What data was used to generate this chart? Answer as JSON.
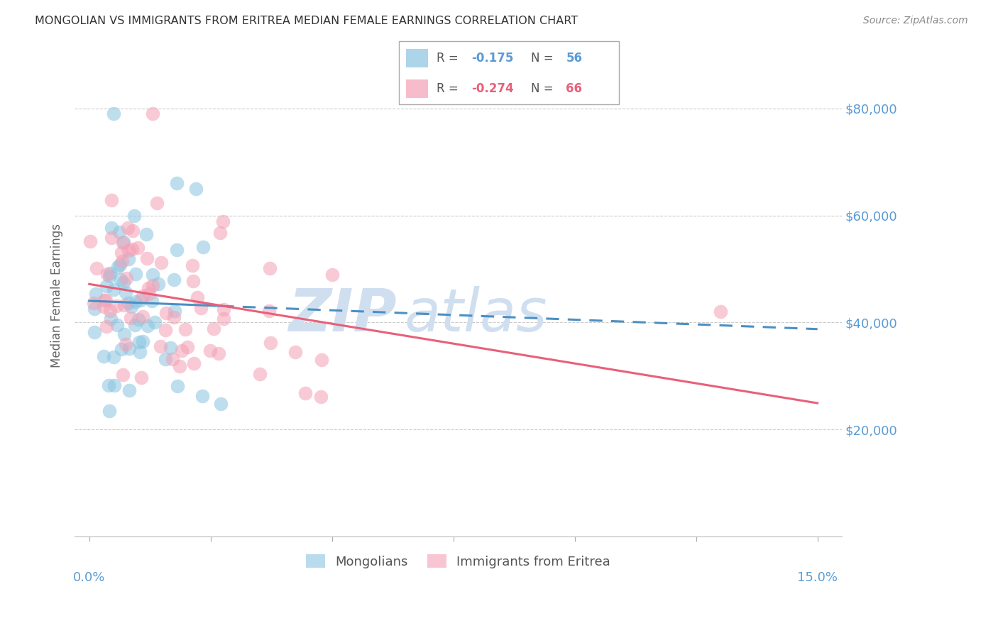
{
  "title": "MONGOLIAN VS IMMIGRANTS FROM ERITREA MEDIAN FEMALE EARNINGS CORRELATION CHART",
  "source": "Source: ZipAtlas.com",
  "ylabel": "Median Female Earnings",
  "yticks": [
    20000,
    40000,
    60000,
    80000
  ],
  "ytick_labels": [
    "$20,000",
    "$40,000",
    "$60,000",
    "$80,000"
  ],
  "xlim": [
    0.0,
    0.15
  ],
  "ylim": [
    0,
    90000
  ],
  "legend_mongolians": "Mongolians",
  "legend_eritrea": "Immigrants from Eritrea",
  "R_mongolian": -0.175,
  "N_mongolian": 56,
  "R_eritrea": -0.274,
  "N_eritrea": 66,
  "color_blue": "#89c4e1",
  "color_pink": "#f4a0b5",
  "color_blue_line": "#4a90c4",
  "color_pink_line": "#e8607a",
  "color_axis_labels": "#5b9bd5",
  "watermark_color": "#d0dff0",
  "seed_mong": 10,
  "seed_erit": 20
}
